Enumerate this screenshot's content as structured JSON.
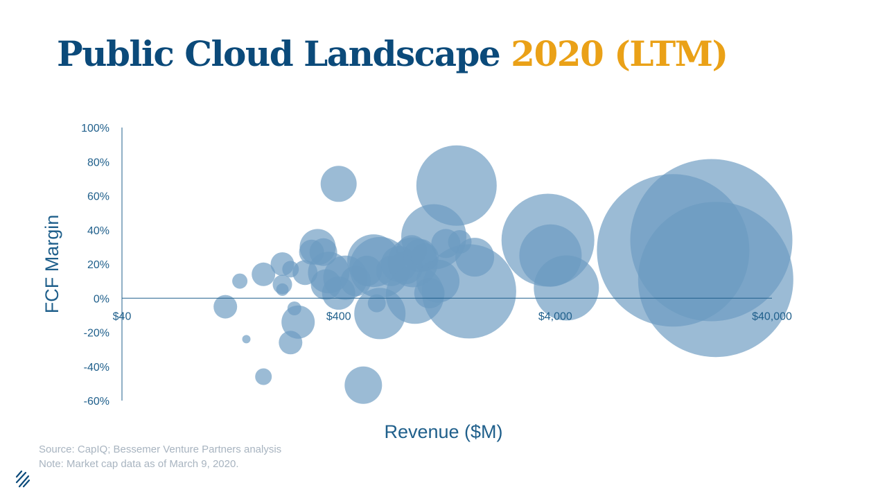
{
  "title": {
    "main": "Public Cloud Landscape",
    "accent": "2020 (LTM)"
  },
  "footnotes": {
    "source": "Source: CapIQ; Bessemer Venture Partners analysis",
    "note": "Note: Market cap data as of March 9, 2020."
  },
  "logo": {
    "icon": "bessemer-logo-icon"
  },
  "colors": {
    "title": "#0b4a7a",
    "accent": "#eaa117",
    "bubble": "#6c9bc1",
    "axis": "#1f5f8b"
  },
  "chart_data": {
    "type": "scatter",
    "xlabel": "Revenue ($M)",
    "ylabel": "FCF Margin",
    "x_scale": "log",
    "xlim": [
      40,
      40000
    ],
    "ylim": [
      -60,
      100
    ],
    "x_ticks": [
      {
        "value": 40,
        "label": "$40"
      },
      {
        "value": 400,
        "label": "$400"
      },
      {
        "value": 4000,
        "label": "$4,000"
      },
      {
        "value": 40000,
        "label": "$40,000"
      }
    ],
    "y_ticks": [
      {
        "value": 100,
        "label": "100%"
      },
      {
        "value": 80,
        "label": "80%"
      },
      {
        "value": 60,
        "label": "60%"
      },
      {
        "value": 40,
        "label": "40%"
      },
      {
        "value": 20,
        "label": "20%"
      },
      {
        "value": 0,
        "label": "0%"
      },
      {
        "value": -20,
        "label": "-20%"
      },
      {
        "value": -40,
        "label": "-40%"
      },
      {
        "value": -60,
        "label": "-60%"
      }
    ],
    "bubble_size_meaning": "market cap (relative)",
    "points": [
      {
        "x": 120,
        "y": -5,
        "size": 17
      },
      {
        "x": 140,
        "y": 10,
        "size": 11
      },
      {
        "x": 150,
        "y": -24,
        "size": 6
      },
      {
        "x": 180,
        "y": 14,
        "size": 17
      },
      {
        "x": 180,
        "y": -46,
        "size": 12
      },
      {
        "x": 220,
        "y": 20,
        "size": 17
      },
      {
        "x": 220,
        "y": 8,
        "size": 14
      },
      {
        "x": 220,
        "y": 5,
        "size": 9
      },
      {
        "x": 240,
        "y": -26,
        "size": 17
      },
      {
        "x": 240,
        "y": 17,
        "size": 12
      },
      {
        "x": 250,
        "y": -6,
        "size": 10
      },
      {
        "x": 260,
        "y": -14,
        "size": 24
      },
      {
        "x": 280,
        "y": 15,
        "size": 18
      },
      {
        "x": 300,
        "y": 27,
        "size": 18
      },
      {
        "x": 320,
        "y": 30,
        "size": 26
      },
      {
        "x": 340,
        "y": 27,
        "size": 20
      },
      {
        "x": 350,
        "y": 8,
        "size": 22
      },
      {
        "x": 360,
        "y": 15,
        "size": 30
      },
      {
        "x": 400,
        "y": 67,
        "size": 26
      },
      {
        "x": 400,
        "y": 3,
        "size": 24
      },
      {
        "x": 430,
        "y": 12,
        "size": 32
      },
      {
        "x": 480,
        "y": 10,
        "size": 22
      },
      {
        "x": 520,
        "y": -51,
        "size": 27
      },
      {
        "x": 540,
        "y": 16,
        "size": 22
      },
      {
        "x": 580,
        "y": 22,
        "size": 38
      },
      {
        "x": 600,
        "y": -3,
        "size": 13
      },
      {
        "x": 620,
        "y": 18,
        "size": 44
      },
      {
        "x": 620,
        "y": -9,
        "size": 37
      },
      {
        "x": 700,
        "y": 16,
        "size": 22
      },
      {
        "x": 760,
        "y": 20,
        "size": 26
      },
      {
        "x": 820,
        "y": 18,
        "size": 24
      },
      {
        "x": 870,
        "y": 28,
        "size": 22
      },
      {
        "x": 880,
        "y": 21,
        "size": 36
      },
      {
        "x": 900,
        "y": 2,
        "size": 42
      },
      {
        "x": 950,
        "y": 25,
        "size": 24
      },
      {
        "x": 1000,
        "y": 24,
        "size": 20
      },
      {
        "x": 1050,
        "y": 3,
        "size": 22
      },
      {
        "x": 1100,
        "y": 36,
        "size": 47
      },
      {
        "x": 1150,
        "y": 10,
        "size": 31
      },
      {
        "x": 1250,
        "y": 32,
        "size": 21
      },
      {
        "x": 1400,
        "y": 66,
        "size": 58
      },
      {
        "x": 1450,
        "y": 33,
        "size": 17
      },
      {
        "x": 1600,
        "y": 4,
        "size": 68
      },
      {
        "x": 1700,
        "y": 24,
        "size": 28
      },
      {
        "x": 3700,
        "y": 34,
        "size": 67
      },
      {
        "x": 3800,
        "y": 25,
        "size": 45
      },
      {
        "x": 4500,
        "y": 6,
        "size": 47
      },
      {
        "x": 14000,
        "y": 28,
        "size": 110
      },
      {
        "x": 21000,
        "y": 34,
        "size": 117
      },
      {
        "x": 22000,
        "y": 11,
        "size": 112
      }
    ]
  }
}
